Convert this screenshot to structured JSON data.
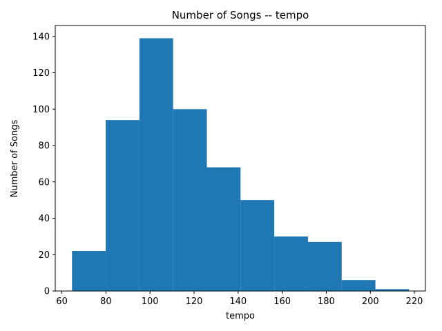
{
  "chart_data": {
    "type": "bar",
    "title": "Number of Songs -- tempo",
    "xlabel": "tempo",
    "ylabel": "Number of Songs",
    "bin_edges": [
      64.6,
      79.9,
      95.2,
      110.5,
      125.8,
      141.1,
      156.4,
      171.7,
      187.0,
      202.3,
      217.6
    ],
    "values": [
      22,
      94,
      139,
      100,
      68,
      50,
      30,
      27,
      6,
      1
    ],
    "xlim": [
      57,
      225
    ],
    "ylim": [
      0,
      146
    ],
    "xticks": [
      60,
      80,
      100,
      120,
      140,
      160,
      180,
      200,
      220
    ],
    "yticks": [
      0,
      20,
      40,
      60,
      80,
      100,
      120,
      140
    ],
    "bar_color": "#1f77b4",
    "grid": false
  }
}
